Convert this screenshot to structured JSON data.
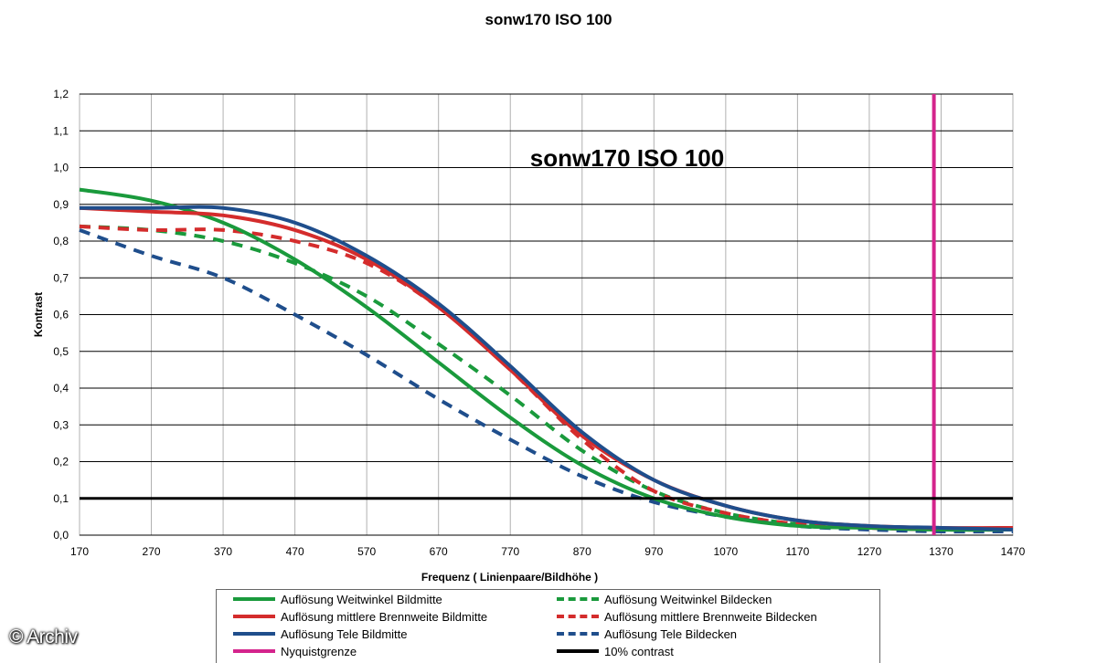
{
  "page": {
    "title": "sonw170 ISO 100",
    "copyright": "© Archiv"
  },
  "chart_data": {
    "type": "line",
    "title": "sonw170 ISO 100",
    "inner_title": "sonw170 ISO 100",
    "xlabel": "Frequenz ( Linienpaare/Bildhöhe )",
    "ylabel": "Kontrast",
    "xlim": [
      170,
      1470
    ],
    "ylim": [
      0,
      1.2
    ],
    "x_ticks": [
      "170",
      "270",
      "370",
      "470",
      "570",
      "670",
      "770",
      "870",
      "970",
      "1070",
      "1170",
      "1270",
      "1370",
      "1470"
    ],
    "y_ticks": [
      "0,0",
      "0,1",
      "0,2",
      "0,3",
      "0,4",
      "0,5",
      "0,6",
      "0,7",
      "0,8",
      "0,9",
      "1,0",
      "1,1",
      "1,2"
    ],
    "grid": "horizontal and vertical",
    "legend_position": "bottom",
    "series": [
      {
        "name": "Auflösung Weitwinkel Bildmitte",
        "color": "#1a9a3c",
        "style": "solid",
        "x": [
          170,
          270,
          370,
          470,
          570,
          670,
          770,
          870,
          970,
          1070,
          1170,
          1270,
          1370,
          1470
        ],
        "y": [
          0.94,
          0.91,
          0.85,
          0.75,
          0.62,
          0.47,
          0.32,
          0.19,
          0.1,
          0.05,
          0.025,
          0.02,
          0.015,
          0.015
        ]
      },
      {
        "name": "Auflösung mittlere Brennweite Bildmitte",
        "color": "#d42c2c",
        "style": "solid",
        "x": [
          170,
          270,
          370,
          470,
          570,
          670,
          770,
          870,
          970,
          1070,
          1170,
          1270,
          1370,
          1470
        ],
        "y": [
          0.89,
          0.88,
          0.87,
          0.83,
          0.75,
          0.62,
          0.45,
          0.27,
          0.15,
          0.08,
          0.04,
          0.025,
          0.02,
          0.02
        ]
      },
      {
        "name": "Auflösung Tele Bildmitte",
        "color": "#1f4e8c",
        "style": "solid",
        "x": [
          170,
          270,
          370,
          470,
          570,
          670,
          770,
          870,
          970,
          1070,
          1170,
          1270,
          1370,
          1470
        ],
        "y": [
          0.89,
          0.89,
          0.89,
          0.85,
          0.76,
          0.63,
          0.46,
          0.28,
          0.15,
          0.08,
          0.04,
          0.025,
          0.02,
          0.015
        ]
      },
      {
        "name": "Auflösung Weitwinkel Bildecken",
        "color": "#1a9a3c",
        "style": "dashed",
        "x": [
          170,
          270,
          370,
          470,
          570,
          670,
          770,
          870,
          970,
          1070,
          1170,
          1270,
          1370,
          1470
        ],
        "y": [
          0.84,
          0.83,
          0.8,
          0.74,
          0.65,
          0.52,
          0.38,
          0.23,
          0.12,
          0.06,
          0.03,
          0.02,
          0.015,
          0.015
        ]
      },
      {
        "name": "Auflösung mittlere Brennweite Bildecken",
        "color": "#d42c2c",
        "style": "dashed",
        "x": [
          170,
          270,
          370,
          470,
          570,
          670,
          770,
          870,
          970,
          1070,
          1170,
          1270,
          1370,
          1470
        ],
        "y": [
          0.84,
          0.83,
          0.83,
          0.8,
          0.74,
          0.62,
          0.45,
          0.26,
          0.12,
          0.06,
          0.03,
          0.02,
          0.015,
          0.015
        ]
      },
      {
        "name": "Auflösung Tele Bildecken",
        "color": "#1f4e8c",
        "style": "dashed",
        "x": [
          170,
          270,
          370,
          470,
          570,
          670,
          770,
          870,
          970,
          1070,
          1170,
          1270,
          1370,
          1470
        ],
        "y": [
          0.83,
          0.76,
          0.7,
          0.6,
          0.49,
          0.37,
          0.26,
          0.16,
          0.09,
          0.05,
          0.025,
          0.015,
          0.01,
          0.01
        ]
      }
    ],
    "reference_lines": [
      {
        "name": "Nyquistgrenze",
        "color": "#d4248c",
        "orientation": "vertical",
        "x": 1360
      },
      {
        "name": "10% contrast",
        "color": "#000000",
        "orientation": "horizontal",
        "y": 0.1
      }
    ],
    "legend": [
      {
        "label": "Auflösung Weitwinkel Bildmitte",
        "color": "#1a9a3c",
        "style": "solid",
        "col": 0,
        "row": 0
      },
      {
        "label": "Auflösung Weitwinkel Bildecken",
        "color": "#1a9a3c",
        "style": "dashed",
        "col": 1,
        "row": 0
      },
      {
        "label": "Auflösung mittlere Brennweite Bildmitte",
        "color": "#d42c2c",
        "style": "solid",
        "col": 0,
        "row": 1
      },
      {
        "label": "Auflösung mittlere Brennweite Bildecken",
        "color": "#d42c2c",
        "style": "dashed",
        "col": 1,
        "row": 1
      },
      {
        "label": "Auflösung Tele Bildmitte",
        "color": "#1f4e8c",
        "style": "solid",
        "col": 0,
        "row": 2
      },
      {
        "label": "Auflösung Tele Bildecken",
        "color": "#1f4e8c",
        "style": "dashed",
        "col": 1,
        "row": 2
      },
      {
        "label": "Nyquistgrenze",
        "color": "#d4248c",
        "style": "solid",
        "col": 0,
        "row": 3
      },
      {
        "label": "10% contrast",
        "color": "#000000",
        "style": "solid",
        "col": 1,
        "row": 3
      }
    ]
  }
}
